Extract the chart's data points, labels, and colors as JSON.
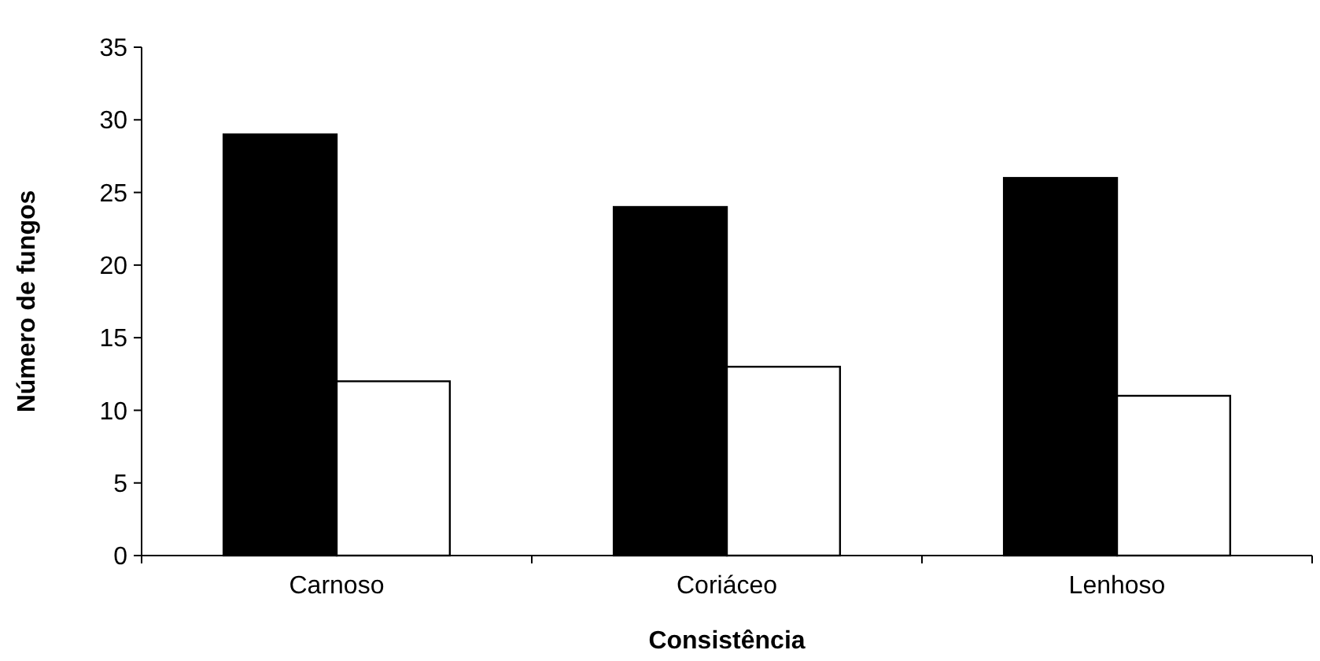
{
  "chart_data": {
    "type": "bar",
    "xlabel": "Consistência",
    "ylabel": "Número de fungos",
    "categories": [
      "Carnoso",
      "Coriáceo",
      "Lenhoso"
    ],
    "series": [
      {
        "color": "#000000",
        "values": [
          29,
          24,
          26
        ]
      },
      {
        "color": "#ffffff",
        "values": [
          12,
          13,
          11
        ]
      }
    ],
    "ylim": [
      0,
      35
    ],
    "yticks": [
      0,
      5,
      10,
      15,
      20,
      25,
      30,
      35
    ],
    "grid": false
  }
}
